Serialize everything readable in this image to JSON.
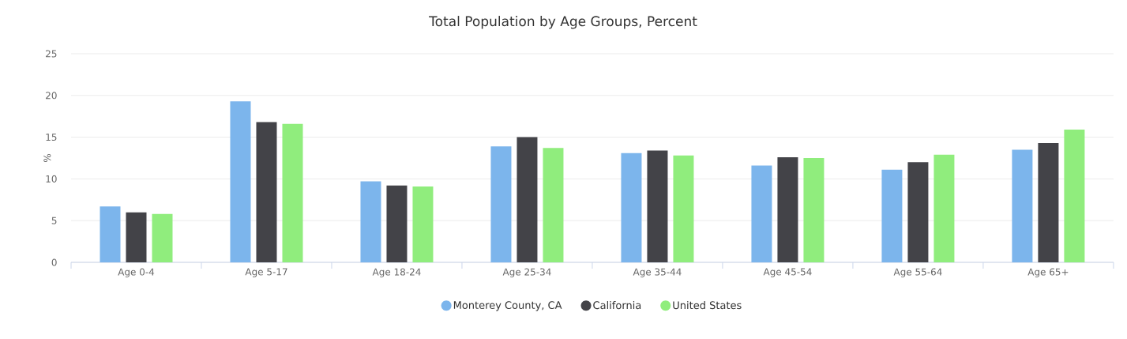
{
  "chart_data": {
    "type": "bar",
    "title": "Total Population by Age Groups, Percent",
    "ylabel": "%",
    "categories": [
      "Age 0-4",
      "Age 5-17",
      "Age 18-24",
      "Age 25-34",
      "Age 35-44",
      "Age 45-54",
      "Age 55-64",
      "Age 65+"
    ],
    "series": [
      {
        "name": "Monterey County, CA",
        "color": "#7cb5ec",
        "values": [
          6.7,
          19.3,
          9.7,
          13.9,
          13.1,
          11.6,
          11.1,
          13.5
        ]
      },
      {
        "name": "California",
        "color": "#434348",
        "values": [
          6.0,
          16.8,
          9.2,
          15.0,
          13.4,
          12.6,
          12.0,
          14.3
        ]
      },
      {
        "name": "United States",
        "color": "#90ed7d",
        "values": [
          5.8,
          16.6,
          9.1,
          13.7,
          12.8,
          12.5,
          12.9,
          15.9
        ]
      }
    ],
    "ylim": [
      0,
      25
    ],
    "yticks": [
      0,
      5,
      10,
      15,
      20,
      25
    ],
    "grid": "y",
    "legend": "bottom"
  }
}
